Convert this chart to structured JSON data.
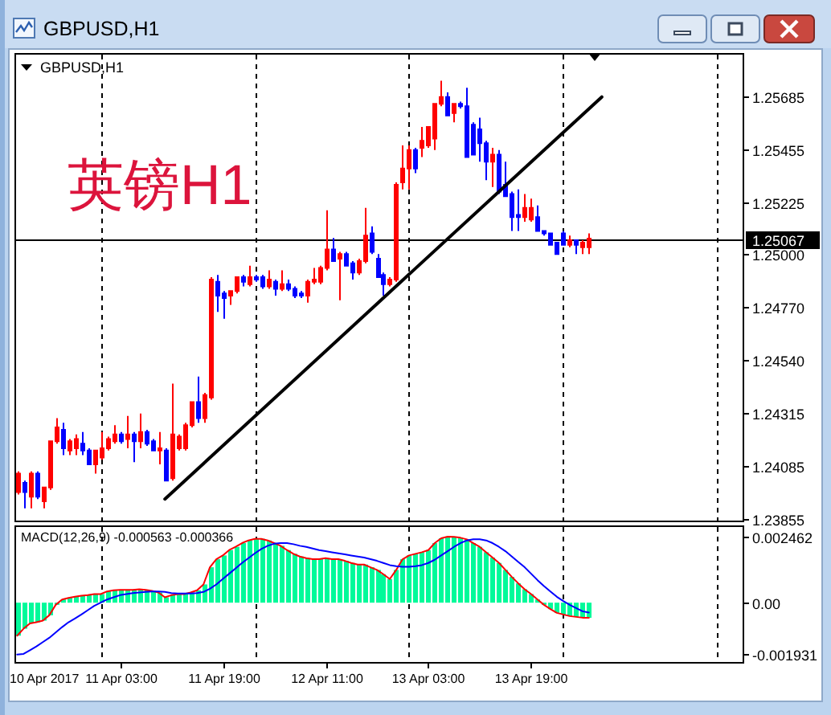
{
  "chart_data": [
    {
      "type": "candlestick",
      "title": "GBPUSD,H1",
      "subtitle": "GBPUSD,H1",
      "annotations": [
        "英镑H1"
      ],
      "x": [
        "2017-04-10T11:00",
        "2017-04-10T12:00",
        "2017-04-10T13:00",
        "2017-04-10T14:00",
        "2017-04-10T15:00",
        "2017-04-10T16:00",
        "2017-04-10T17:00",
        "2017-04-10T18:00",
        "2017-04-10T19:00",
        "2017-04-10T20:00",
        "2017-04-10T21:00",
        "2017-04-10T22:00",
        "2017-04-10T23:00",
        "2017-04-11T00:00",
        "2017-04-11T01:00",
        "2017-04-11T02:00",
        "2017-04-11T03:00",
        "2017-04-11T04:00",
        "2017-04-11T05:00",
        "2017-04-11T06:00",
        "2017-04-11T07:00",
        "2017-04-11T08:00",
        "2017-04-11T09:00",
        "2017-04-11T10:00",
        "2017-04-11T11:00",
        "2017-04-11T12:00",
        "2017-04-11T13:00",
        "2017-04-11T14:00",
        "2017-04-11T15:00",
        "2017-04-11T16:00",
        "2017-04-11T17:00",
        "2017-04-11T18:00",
        "2017-04-11T19:00",
        "2017-04-11T20:00",
        "2017-04-11T21:00",
        "2017-04-11T22:00",
        "2017-04-11T23:00",
        "2017-04-12T00:00",
        "2017-04-12T01:00",
        "2017-04-12T02:00",
        "2017-04-12T03:00",
        "2017-04-12T04:00",
        "2017-04-12T05:00",
        "2017-04-12T06:00",
        "2017-04-12T07:00",
        "2017-04-12T08:00",
        "2017-04-12T09:00",
        "2017-04-12T10:00",
        "2017-04-12T11:00",
        "2017-04-12T12:00",
        "2017-04-12T13:00",
        "2017-04-12T14:00",
        "2017-04-12T15:00",
        "2017-04-12T16:00",
        "2017-04-12T17:00",
        "2017-04-12T18:00",
        "2017-04-12T19:00",
        "2017-04-12T20:00",
        "2017-04-12T21:00",
        "2017-04-12T22:00",
        "2017-04-12T23:00",
        "2017-04-13T00:00",
        "2017-04-13T01:00",
        "2017-04-13T02:00",
        "2017-04-13T03:00",
        "2017-04-13T04:00",
        "2017-04-13T05:00",
        "2017-04-13T06:00",
        "2017-04-13T07:00",
        "2017-04-13T08:00",
        "2017-04-13T09:00",
        "2017-04-13T10:00",
        "2017-04-13T11:00",
        "2017-04-13T12:00",
        "2017-04-13T13:00",
        "2017-04-13T14:00",
        "2017-04-13T15:00",
        "2017-04-13T16:00",
        "2017-04-13T17:00",
        "2017-04-13T18:00",
        "2017-04-13T19:00",
        "2017-04-13T20:00",
        "2017-04-13T21:00",
        "2017-04-13T22:00",
        "2017-04-13T23:00",
        "2017-04-14T00:00",
        "2017-04-14T01:00",
        "2017-04-14T02:00",
        "2017-04-14T03:00",
        "2017-04-14T04:00"
      ],
      "ohlc": [
        [
          1.2397,
          1.2406,
          1.2396,
          1.2405
        ],
        [
          1.2401,
          1.2402,
          1.239,
          1.2397
        ],
        [
          1.2395,
          1.2406,
          1.239,
          1.2405
        ],
        [
          1.2405,
          1.2406,
          1.2394,
          1.2395
        ],
        [
          1.2393,
          1.2399,
          1.239,
          1.2399
        ],
        [
          1.2399,
          1.2419,
          1.2398,
          1.2419
        ],
        [
          1.2419,
          1.2429,
          1.2418,
          1.2425
        ],
        [
          1.2424,
          1.2427,
          1.2413,
          1.2416
        ],
        [
          1.2415,
          1.242,
          1.2413,
          1.2419
        ],
        [
          1.2416,
          1.2422,
          1.2413,
          1.242
        ],
        [
          1.2418,
          1.2423,
          1.2413,
          1.2415
        ],
        [
          1.2415,
          1.2416,
          1.2409,
          1.2409
        ],
        [
          1.2409,
          1.2415,
          1.2405,
          1.2415
        ],
        [
          1.2412,
          1.2423,
          1.2411,
          1.2416
        ],
        [
          1.2416,
          1.2421,
          1.2415,
          1.242
        ],
        [
          1.2419,
          1.2426,
          1.2418,
          1.2422
        ],
        [
          1.2422,
          1.2423,
          1.2418,
          1.2419
        ],
        [
          1.242,
          1.243,
          1.2416,
          1.2422
        ],
        [
          1.2422,
          1.2423,
          1.241,
          1.2419
        ],
        [
          1.2419,
          1.2431,
          1.2416,
          1.2423
        ],
        [
          1.2423,
          1.2424,
          1.2417,
          1.2418
        ],
        [
          1.2419,
          1.242,
          1.2415,
          1.2415
        ],
        [
          1.2415,
          1.2423,
          1.2409,
          1.2416
        ],
        [
          1.2415,
          1.2416,
          1.2402,
          1.2402
        ],
        [
          1.2403,
          1.2444,
          1.2402,
          1.2422
        ],
        [
          1.2416,
          1.2422,
          1.2415,
          1.2421
        ],
        [
          1.2416,
          1.2427,
          1.2415,
          1.2426
        ],
        [
          1.2426,
          1.2436,
          1.2425,
          1.2436
        ],
        [
          1.2436,
          1.2447,
          1.2427,
          1.2429
        ],
        [
          1.2429,
          1.244,
          1.2427,
          1.2439
        ],
        [
          1.2438,
          1.249,
          1.2437,
          1.2489
        ],
        [
          1.2488,
          1.2491,
          1.2475,
          1.2482
        ],
        [
          1.2483,
          1.2484,
          1.2472,
          1.2481
        ],
        [
          1.2482,
          1.2484,
          1.2478,
          1.2484
        ],
        [
          1.2484,
          1.249,
          1.2483,
          1.249
        ],
        [
          1.249,
          1.2491,
          1.2486,
          1.2488
        ],
        [
          1.2487,
          1.2495,
          1.2486,
          1.249
        ],
        [
          1.249,
          1.2491,
          1.2488,
          1.2489
        ],
        [
          1.249,
          1.2491,
          1.2485,
          1.2486
        ],
        [
          1.2486,
          1.2493,
          1.2485,
          1.2489
        ],
        [
          1.2488,
          1.2489,
          1.2482,
          1.2485
        ],
        [
          1.2485,
          1.2493,
          1.2484,
          1.2487
        ],
        [
          1.2487,
          1.2489,
          1.2484,
          1.2485
        ],
        [
          1.2485,
          1.2486,
          1.2481,
          1.2482
        ],
        [
          1.2483,
          1.2484,
          1.2481,
          1.2482
        ],
        [
          1.2482,
          1.2489,
          1.2479,
          1.2488
        ],
        [
          1.2488,
          1.2494,
          1.2487,
          1.2489
        ],
        [
          1.2488,
          1.2495,
          1.2487,
          1.2494
        ],
        [
          1.2494,
          1.2519,
          1.2493,
          1.2502
        ],
        [
          1.2502,
          1.2507,
          1.2497,
          1.2497
        ],
        [
          1.2498,
          1.2501,
          1.248,
          1.25
        ],
        [
          1.25,
          1.2501,
          1.2495,
          1.2495
        ],
        [
          1.2496,
          1.2497,
          1.2489,
          1.2492
        ],
        [
          1.2492,
          1.2498,
          1.2491,
          1.2497
        ],
        [
          1.2497,
          1.252,
          1.2496,
          1.2508
        ],
        [
          1.2509,
          1.2512,
          1.25,
          1.2501
        ],
        [
          1.2498,
          1.25,
          1.249,
          1.249
        ],
        [
          1.2491,
          1.2492,
          1.2482,
          1.2487
        ],
        [
          1.2487,
          1.249,
          1.2486,
          1.2489
        ],
        [
          1.2489,
          1.2531,
          1.2488,
          1.253
        ],
        [
          1.2531,
          1.2547,
          1.2528,
          1.2537
        ],
        [
          1.2537,
          1.2547,
          1.2528,
          1.2545
        ],
        [
          1.2545,
          1.2546,
          1.2535,
          1.2537
        ],
        [
          1.2546,
          1.2555,
          1.2542,
          1.2549
        ],
        [
          1.2547,
          1.2555,
          1.2546,
          1.2555
        ],
        [
          1.255,
          1.2565,
          1.2545,
          1.2565
        ],
        [
          1.2565,
          1.2575,
          1.2564,
          1.2568
        ],
        [
          1.2568,
          1.257,
          1.256,
          1.256
        ],
        [
          1.2561,
          1.2565,
          1.2557,
          1.2565
        ],
        [
          1.2565,
          1.2566,
          1.2563,
          1.2564
        ],
        [
          1.2564,
          1.2572,
          1.2542,
          1.2542
        ],
        [
          1.2556,
          1.2557,
          1.2543,
          1.2543
        ],
        [
          1.2554,
          1.2559,
          1.254,
          1.2548
        ],
        [
          1.2548,
          1.2549,
          1.2532,
          1.254
        ],
        [
          1.254,
          1.2546,
          1.2529,
          1.2543
        ],
        [
          1.2543,
          1.2545,
          1.2526,
          1.2527
        ],
        [
          1.253,
          1.254,
          1.2525,
          1.2525
        ],
        [
          1.2526,
          1.2527,
          1.251,
          1.2516
        ],
        [
          1.2517,
          1.2528,
          1.251,
          1.2516
        ],
        [
          1.2516,
          1.2526,
          1.2514,
          1.252
        ],
        [
          1.2515,
          1.2524,
          1.2514,
          1.252
        ],
        [
          1.2516,
          1.2521,
          1.251,
          1.251
        ],
        [
          1.251,
          1.251,
          1.2508,
          1.2509
        ],
        [
          1.2509,
          1.2509,
          1.2504,
          1.2504
        ],
        [
          1.2505,
          1.2505,
          1.25,
          1.25
        ],
        [
          1.2509,
          1.251,
          1.2504,
          1.2504
        ],
        [
          1.2504,
          1.2508,
          1.2503,
          1.2506
        ],
        [
          1.2506,
          1.2506,
          1.25,
          1.2504
        ],
        [
          1.2503,
          1.2506,
          1.25,
          1.2505
        ],
        [
          1.2503,
          1.2509,
          1.25,
          1.25067
        ]
      ],
      "colors": [
        "#ff0000",
        "#0000ff",
        "#ff0000",
        "#0000ff",
        "#ff0000",
        "#ff0000",
        "#ff0000",
        "#0000ff",
        "#ff0000",
        "#ff0000",
        "#0000ff",
        "#0000ff",
        "#ff0000",
        "#ff0000",
        "#ff0000",
        "#ff0000",
        "#0000ff",
        "#ff0000",
        "#0000ff",
        "#ff0000",
        "#0000ff",
        "#0000ff",
        "#ff0000",
        "#0000ff",
        "#ff0000",
        "#ff0000",
        "#ff0000",
        "#ff0000",
        "#0000ff",
        "#ff0000",
        "#ff0000",
        "#0000ff",
        "#0000ff",
        "#ff0000",
        "#ff0000",
        "#0000ff",
        "#ff0000",
        "#0000ff",
        "#0000ff",
        "#ff0000",
        "#0000ff",
        "#ff0000",
        "#0000ff",
        "#0000ff",
        "#0000ff",
        "#ff0000",
        "#ff0000",
        "#ff0000",
        "#ff0000",
        "#0000ff",
        "#ff0000",
        "#0000ff",
        "#0000ff",
        "#ff0000",
        "#ff0000",
        "#0000ff",
        "#0000ff",
        "#0000ff",
        "#ff0000",
        "#ff0000",
        "#ff0000",
        "#ff0000",
        "#0000ff",
        "#ff0000",
        "#ff0000",
        "#ff0000",
        "#ff0000",
        "#0000ff",
        "#ff0000",
        "#0000ff",
        "#0000ff",
        "#0000ff",
        "#0000ff",
        "#0000ff",
        "#ff0000",
        "#0000ff",
        "#0000ff",
        "#0000ff",
        "#0000ff",
        "#ff0000",
        "#ff0000",
        "#0000ff",
        "#0000ff",
        "#0000ff",
        "#0000ff",
        "#0000ff",
        "#ff0000",
        "#0000ff",
        "#ff0000",
        "#ff0000"
      ],
      "series": [
        {
          "type": "line",
          "x": [
            "2017-04-11T10:00",
            "2017-04-14T06:00"
          ],
          "values": [
            1.2394,
            1.2568
          ],
          "color": "#000000"
        }
      ],
      "xlim": [
        "2017-04-10T10:35",
        "2017-04-15T04:10"
      ],
      "ylim": [
        1.2384,
        1.2587
      ],
      "yticks": [
        1.23855,
        1.24085,
        1.24315,
        {
          "value": 1.2454,
          "label": "1.24540"
        },
        {
          "value": 1.2477,
          "label": "1.24770"
        },
        {
          "value": 1.25,
          "label": "1.25000"
        },
        1.25225,
        1.25455,
        1.25685
      ],
      "tick_labels": "y",
      "ref_lines": [
        {
          "axis": "y",
          "value": 1.25067,
          "label": "1.25067",
          "color": "#000000",
          "line_style": "solid"
        },
        {
          "axis": "x",
          "value": "2017-04-11T00:00",
          "color": "#000000",
          "line_style": "dashed"
        },
        {
          "axis": "x",
          "value": "2017-04-12T00:00",
          "color": "#000000",
          "line_style": "dashed"
        },
        {
          "axis": "x",
          "value": "2017-04-13T00:00",
          "color": "#000000",
          "line_style": "dashed"
        },
        {
          "axis": "x",
          "value": "2017-04-14T00:00",
          "color": "#000000",
          "line_style": "dashed"
        },
        {
          "axis": "x",
          "value": "2017-04-15T00:00",
          "color": "#000000",
          "line_style": "dashed"
        }
      ]
    },
    {
      "type": "bar",
      "title": "MACD(12,26,9) -0.000563 -0.000366",
      "annotations": [
        "10 Apr 2017"
      ],
      "x": [
        "2017-04-10T11:00",
        "2017-04-10T12:00",
        "2017-04-10T13:00",
        "2017-04-10T14:00",
        "2017-04-10T15:00",
        "2017-04-10T16:00",
        "2017-04-10T17:00",
        "2017-04-10T18:00",
        "2017-04-10T19:00",
        "2017-04-10T20:00",
        "2017-04-10T21:00",
        "2017-04-10T22:00",
        "2017-04-10T23:00",
        "2017-04-11T00:00",
        "2017-04-11T01:00",
        "2017-04-11T02:00",
        "2017-04-11T03:00",
        "2017-04-11T04:00",
        "2017-04-11T05:00",
        "2017-04-11T06:00",
        "2017-04-11T07:00",
        "2017-04-11T08:00",
        "2017-04-11T09:00",
        "2017-04-11T10:00",
        "2017-04-11T11:00",
        "2017-04-11T12:00",
        "2017-04-11T13:00",
        "2017-04-11T14:00",
        "2017-04-11T15:00",
        "2017-04-11T16:00",
        "2017-04-11T17:00",
        "2017-04-11T18:00",
        "2017-04-11T19:00",
        "2017-04-11T20:00",
        "2017-04-11T21:00",
        "2017-04-11T22:00",
        "2017-04-11T23:00",
        "2017-04-12T00:00",
        "2017-04-12T01:00",
        "2017-04-12T02:00",
        "2017-04-12T03:00",
        "2017-04-12T04:00",
        "2017-04-12T05:00",
        "2017-04-12T06:00",
        "2017-04-12T07:00",
        "2017-04-12T08:00",
        "2017-04-12T09:00",
        "2017-04-12T10:00",
        "2017-04-12T11:00",
        "2017-04-12T12:00",
        "2017-04-12T13:00",
        "2017-04-12T14:00",
        "2017-04-12T15:00",
        "2017-04-12T16:00",
        "2017-04-12T17:00",
        "2017-04-12T18:00",
        "2017-04-12T19:00",
        "2017-04-12T20:00",
        "2017-04-12T21:00",
        "2017-04-12T22:00",
        "2017-04-12T23:00",
        "2017-04-13T00:00",
        "2017-04-13T01:00",
        "2017-04-13T02:00",
        "2017-04-13T03:00",
        "2017-04-13T04:00",
        "2017-04-13T05:00",
        "2017-04-13T06:00",
        "2017-04-13T07:00",
        "2017-04-13T08:00",
        "2017-04-13T09:00",
        "2017-04-13T10:00",
        "2017-04-13T11:00",
        "2017-04-13T12:00",
        "2017-04-13T13:00",
        "2017-04-13T14:00",
        "2017-04-13T15:00",
        "2017-04-13T16:00",
        "2017-04-13T17:00",
        "2017-04-13T18:00",
        "2017-04-13T19:00",
        "2017-04-13T20:00",
        "2017-04-13T21:00",
        "2017-04-13T22:00",
        "2017-04-13T23:00",
        "2017-04-14T00:00",
        "2017-04-14T01:00",
        "2017-04-14T02:00",
        "2017-04-14T03:00",
        "2017-04-14T04:00"
      ],
      "series": [
        {
          "type": "bar",
          "color": "#00fa9a",
          "values": [
            -0.00123,
            -0.00097,
            -0.00077,
            -0.00073,
            -0.00067,
            -0.00047,
            -8e-05,
            0.00012,
            0.00018,
            0.00022,
            0.00026,
            0.00028,
            0.00032,
            0.00032,
            0.00042,
            0.00046,
            0.00048,
            0.00048,
            0.00048,
            0.0005,
            0.00048,
            0.00044,
            0.00038,
            0.0002,
            0.00028,
            0.00032,
            0.00032,
            0.00038,
            0.00046,
            0.00068,
            0.00132,
            0.00162,
            0.00176,
            0.00196,
            0.00208,
            0.00222,
            0.00232,
            0.00238,
            0.00238,
            0.00232,
            0.00222,
            0.00212,
            0.00196,
            0.00182,
            0.00172,
            0.00166,
            0.00162,
            0.00162,
            0.00166,
            0.00162,
            0.00162,
            0.00156,
            0.00148,
            0.00142,
            0.00142,
            0.00132,
            0.00122,
            0.00106,
            0.00088,
            0.00122,
            0.00162,
            0.00176,
            0.00182,
            0.00188,
            0.00196,
            0.00222,
            0.0024,
            0.002462,
            0.00245,
            0.00242,
            0.00236,
            0.00222,
            0.00208,
            0.00188,
            0.00168,
            0.00148,
            0.00122,
            0.00096,
            0.00072,
            0.0005,
            0.00032,
            0.00012,
            -8e-05,
            -0.00024,
            -0.00038,
            -0.00044,
            -0.0005,
            -0.00053,
            -0.00056,
            -0.000563
          ]
        },
        {
          "type": "line",
          "color": "#ff0000",
          "values": [
            -0.00123,
            -0.00097,
            -0.00077,
            -0.00073,
            -0.00067,
            -0.00047,
            -8e-05,
            0.00012,
            0.00018,
            0.00022,
            0.00026,
            0.00028,
            0.00032,
            0.00032,
            0.00042,
            0.00046,
            0.00048,
            0.00048,
            0.00048,
            0.0005,
            0.00048,
            0.00044,
            0.00038,
            0.0002,
            0.00028,
            0.00032,
            0.00032,
            0.00038,
            0.00046,
            0.00068,
            0.00132,
            0.00162,
            0.00176,
            0.00196,
            0.00208,
            0.00222,
            0.00232,
            0.00238,
            0.00238,
            0.00232,
            0.00222,
            0.00212,
            0.00196,
            0.00182,
            0.00172,
            0.00166,
            0.00162,
            0.00162,
            0.00166,
            0.00162,
            0.00162,
            0.00156,
            0.00148,
            0.00142,
            0.00142,
            0.00132,
            0.00122,
            0.00106,
            0.00088,
            0.00122,
            0.00162,
            0.00176,
            0.00182,
            0.00188,
            0.00196,
            0.00222,
            0.0024,
            0.002462,
            0.00245,
            0.00242,
            0.00236,
            0.00222,
            0.00208,
            0.00188,
            0.00168,
            0.00148,
            0.00122,
            0.00096,
            0.00072,
            0.0005,
            0.00032,
            0.00012,
            -8e-05,
            -0.00024,
            -0.00038,
            -0.00044,
            -0.0005,
            -0.00053,
            -0.00056,
            -0.000563
          ]
        },
        {
          "type": "line",
          "color": "#0000ff",
          "values": [
            -0.001931,
            -0.00191,
            -0.00177,
            -0.00163,
            -0.00147,
            -0.00131,
            -0.00111,
            -0.00091,
            -0.00073,
            -0.00059,
            -0.00044,
            -0.00028,
            -0.00012,
            0,
            0.00012,
            0.0002,
            0.00028,
            0.00032,
            0.00036,
            0.00038,
            0.0004,
            0.00042,
            0.00042,
            0.0004,
            0.00036,
            0.00034,
            0.00034,
            0.00034,
            0.00036,
            0.0004,
            0.00052,
            0.00068,
            0.00088,
            0.00108,
            0.00128,
            0.00148,
            0.00166,
            0.00184,
            0.002,
            0.00212,
            0.0022,
            0.00222,
            0.00222,
            0.00218,
            0.00212,
            0.00208,
            0.00202,
            0.00196,
            0.00192,
            0.00188,
            0.00184,
            0.0018,
            0.00176,
            0.00172,
            0.00168,
            0.00162,
            0.00156,
            0.00148,
            0.0014,
            0.00136,
            0.00134,
            0.00134,
            0.00136,
            0.0014,
            0.00148,
            0.0016,
            0.00176,
            0.00192,
            0.00208,
            0.00222,
            0.00232,
            0.00236,
            0.00236,
            0.00232,
            0.00222,
            0.00208,
            0.00192,
            0.00172,
            0.00152,
            0.00132,
            0.00108,
            0.00084,
            0.00062,
            0.00042,
            0.00022,
            6e-05,
            -8e-05,
            -0.0002,
            -0.00032,
            -0.000366
          ]
        }
      ],
      "xlim": [
        "2017-04-10T10:35",
        "2017-04-15T04:10"
      ],
      "ylim": [
        -0.00227,
        0.00288
      ],
      "xticks": [
        {
          "value": "2017-04-11T03:00",
          "label": "11 Apr 03:00"
        },
        {
          "value": "2017-04-11T19:00",
          "label": "11 Apr 19:00"
        },
        {
          "value": "2017-04-12T11:00",
          "label": "12 Apr 11:00"
        },
        {
          "value": "2017-04-13T03:00",
          "label": "13 Apr 03:00"
        },
        {
          "value": "2017-04-13T19:00",
          "label": "13 Apr 19:00"
        }
      ],
      "yticks": [
        -0.001931,
        {
          "value": 0,
          "label": "0.00"
        },
        0.002462
      ],
      "ref_lines": [
        {
          "axis": "x",
          "value": "2017-04-11T00:00",
          "color": "#000000",
          "line_style": "dashed"
        },
        {
          "axis": "x",
          "value": "2017-04-12T00:00",
          "color": "#000000",
          "line_style": "dashed"
        },
        {
          "axis": "x",
          "value": "2017-04-13T00:00",
          "color": "#000000",
          "line_style": "dashed"
        },
        {
          "axis": "x",
          "value": "2017-04-14T00:00",
          "color": "#000000",
          "line_style": "dashed"
        },
        {
          "axis": "x",
          "value": "2017-04-15T00:00",
          "color": "#000000",
          "line_style": "dashed"
        }
      ]
    }
  ]
}
